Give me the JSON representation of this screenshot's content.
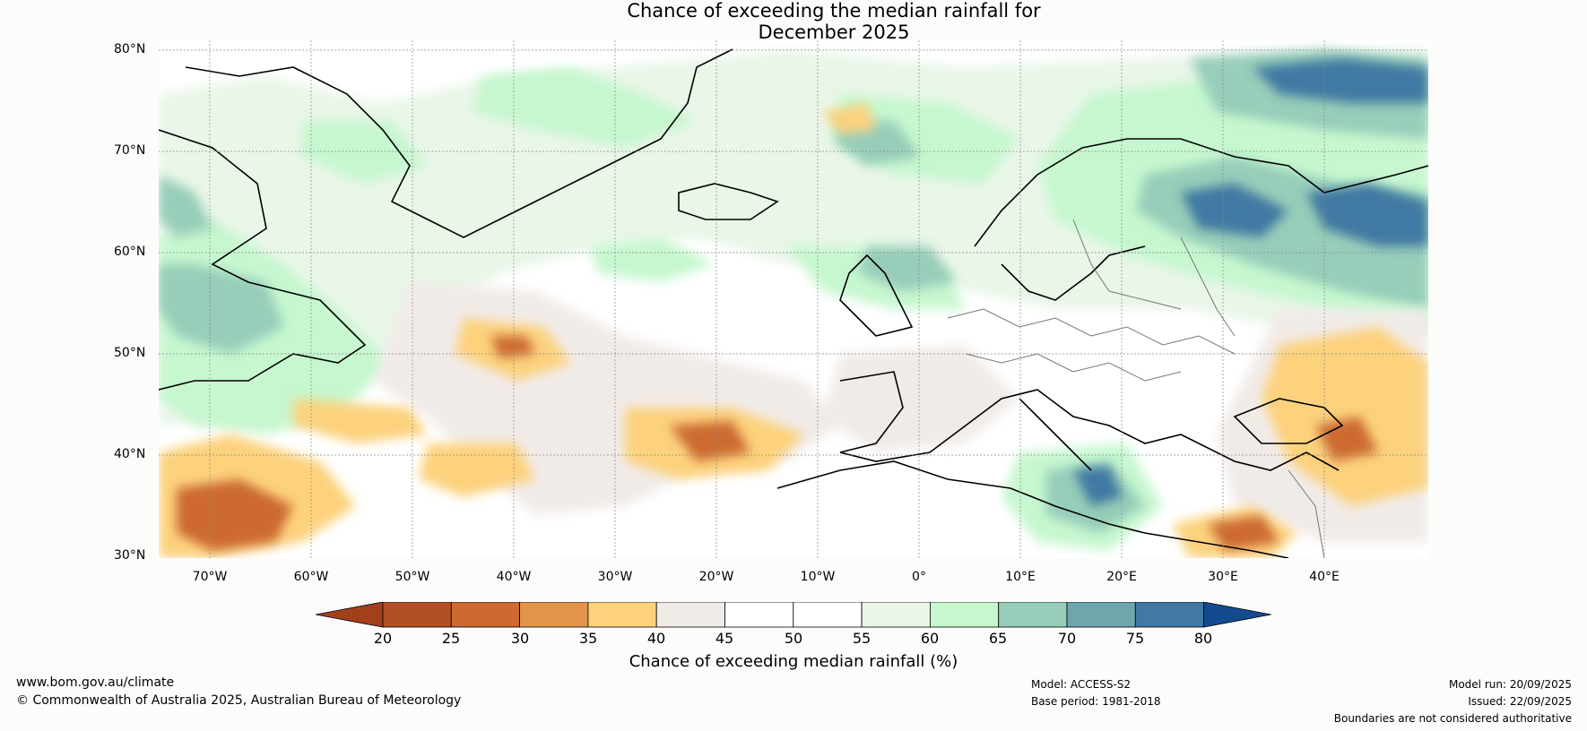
{
  "title": {
    "line1": "Chance of exceeding the median rainfall for",
    "line2": "December 2025"
  },
  "latitude_labels": [
    "80°N",
    "70°N",
    "60°N",
    "50°N",
    "40°N",
    "30°N"
  ],
  "longitude_labels": [
    "70°W",
    "60°W",
    "50°W",
    "40°W",
    "30°W",
    "20°W",
    "10°W",
    "0°",
    "10°E",
    "20°E",
    "30°E",
    "40°E"
  ],
  "colorbar": {
    "ticks": [
      "20",
      "25",
      "30",
      "35",
      "40",
      "45",
      "50",
      "55",
      "60",
      "65",
      "70",
      "75",
      "80"
    ],
    "colors": [
      "#a3401c",
      "#b24f27",
      "#cc6a32",
      "#e2954a",
      "#fcd27d",
      "#f1ebe8",
      "#ffffff",
      "#ffffff",
      "#e9f6e8",
      "#c6f7cf",
      "#97cdb9",
      "#6ea6ad",
      "#4179a3",
      "#134b8f"
    ],
    "label": "Chance of exceeding median rainfall (%)"
  },
  "footer": {
    "website": "www.bom.gov.au/climate",
    "copyright": "© Commonwealth of Australia 2025, Australian Bureau of Meteorology",
    "model": "Model: ACCESS-S2",
    "base_period": "Base period: 1981-2018",
    "model_run": "Model run: 20/09/2025",
    "issued": "Issued: 22/09/2025",
    "disclaimer": "Boundaries are not considered authoritative"
  }
}
